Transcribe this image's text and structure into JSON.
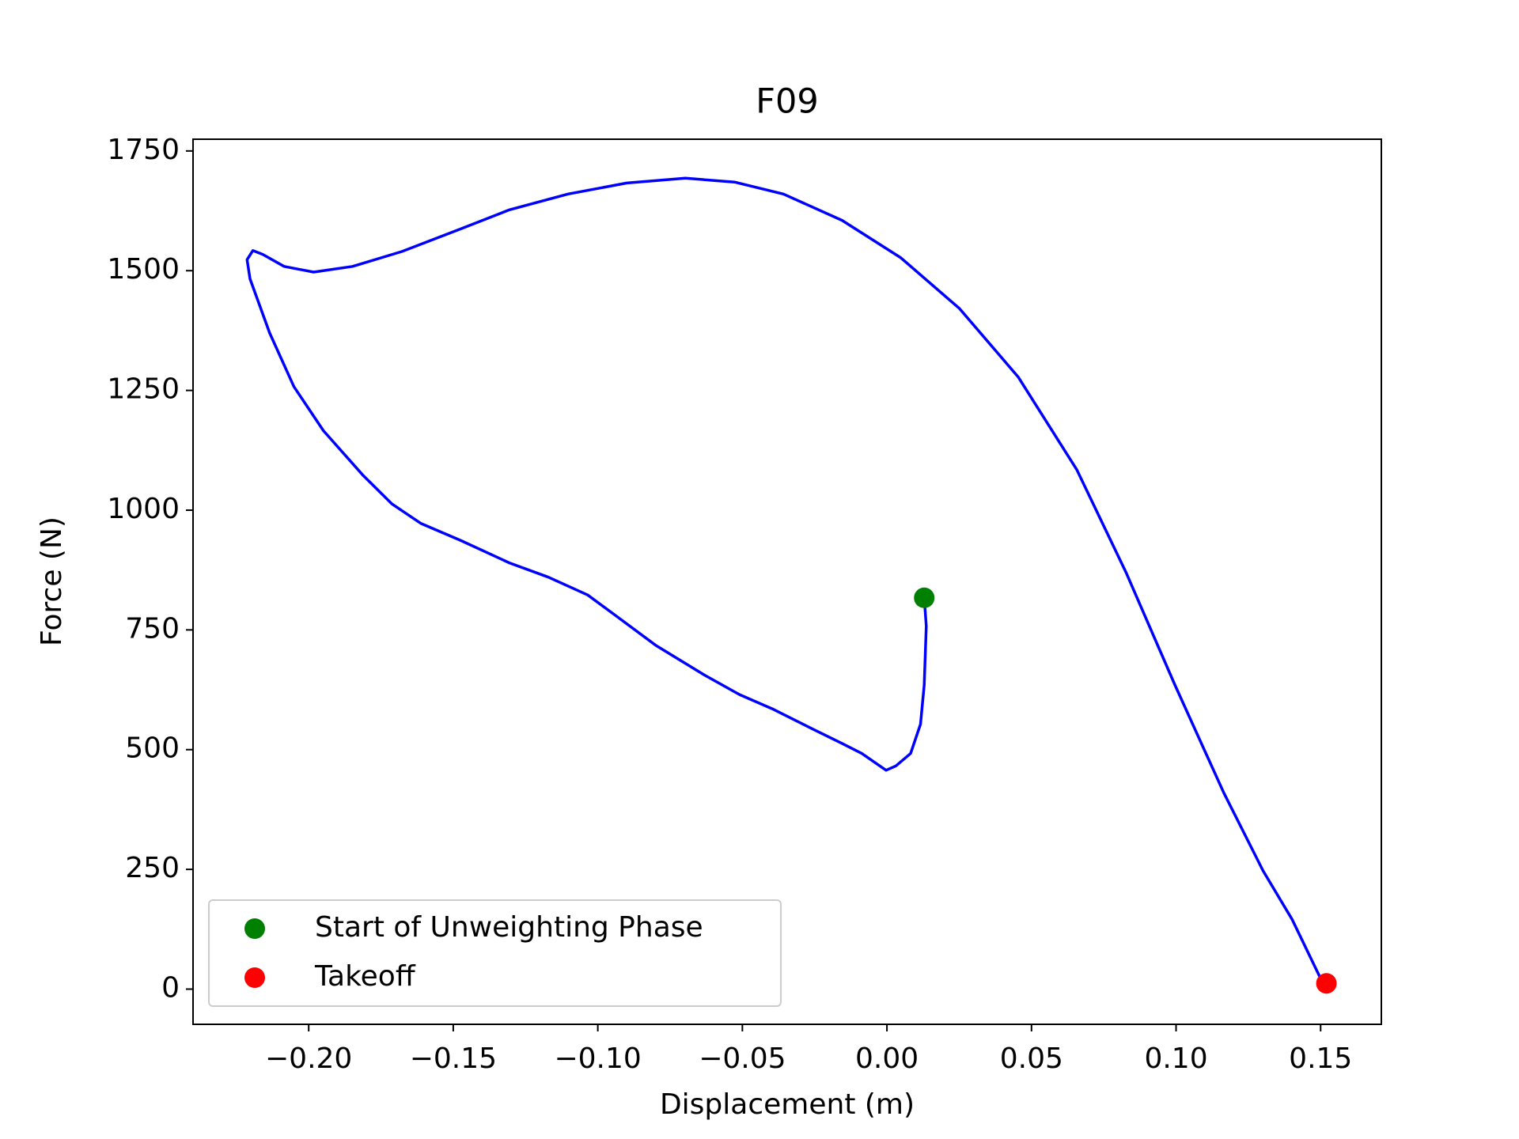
{
  "chart_data": {
    "type": "line",
    "title": "F09",
    "x_label": "Displacement (m)",
    "y_label": "Force (N)",
    "xlim": [
      -0.24,
      0.171
    ],
    "ylim": [
      -73.5,
      1774.5
    ],
    "xticks": [
      {
        "value": -0.2,
        "label": "−0.20"
      },
      {
        "value": -0.15,
        "label": "−0.15"
      },
      {
        "value": -0.1,
        "label": "−0.10"
      },
      {
        "value": -0.05,
        "label": "−0.05"
      },
      {
        "value": 0,
        "label": "0.00"
      },
      0.05,
      {
        "value": 0.1,
        "label": "0.10"
      },
      0.15
    ],
    "yticks": [
      0,
      250,
      500,
      750,
      1000,
      1250,
      1500,
      1750
    ],
    "grid": false,
    "legend": "lower left",
    "series": [
      {
        "style": "line",
        "color": "#0000ff",
        "x": [
          0.0129,
          0.0136,
          0.0129,
          0.0116,
          0.0082,
          0.0031,
          -0.0003,
          -0.0087,
          -0.0155,
          -0.0257,
          -0.0392,
          -0.051,
          -0.0629,
          -0.0798,
          -0.0934,
          -0.1035,
          -0.1171,
          -0.1306,
          -0.1475,
          -0.1611,
          -0.1712,
          -0.1814,
          -0.1949,
          -0.2051,
          -0.2135,
          -0.2203,
          -0.2213,
          -0.2193,
          -0.2159,
          -0.2085,
          -0.1983,
          -0.1848,
          -0.1678,
          -0.1475,
          -0.1306,
          -0.1103,
          -0.09,
          -0.0697,
          -0.0527,
          -0.0358,
          -0.0155,
          0.0048,
          0.0251,
          0.0454,
          0.0657,
          0.0827,
          0.0996,
          0.1165,
          0.1301,
          0.1402,
          0.15,
          0.1521
        ],
        "values": [
          817,
          758,
          635,
          553,
          492,
          466,
          457,
          492,
          513,
          543,
          584,
          615,
          655,
          717,
          778,
          823,
          860,
          890,
          937,
          972,
          1013,
          1074,
          1166,
          1258,
          1370,
          1483,
          1523,
          1542,
          1534,
          1509,
          1497,
          1509,
          1540,
          1587,
          1627,
          1660,
          1683,
          1693,
          1685,
          1660,
          1605,
          1527,
          1421,
          1278,
          1084,
          870,
          635,
          410,
          247,
          145,
          22,
          12
        ]
      },
      {
        "style": "marker",
        "name": "Start of Unweighting Phase",
        "color": "#008000",
        "x": [
          0.0129
        ],
        "values": [
          817
        ]
      },
      {
        "style": "marker",
        "name": "Takeoff",
        "color": "#ff0000",
        "x": [
          0.152
        ],
        "values": [
          12
        ]
      }
    ]
  }
}
